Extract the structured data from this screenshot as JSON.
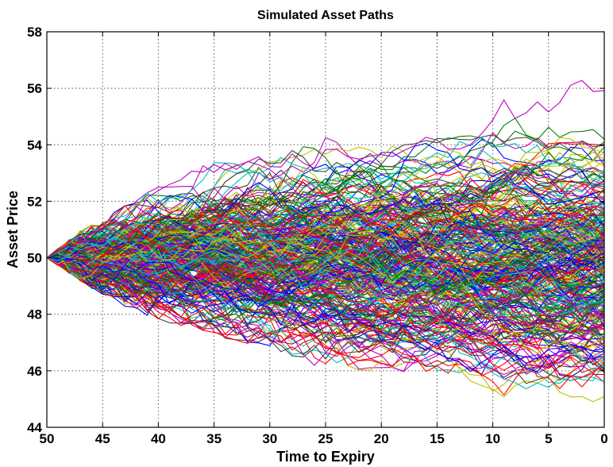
{
  "chart_data": {
    "type": "line",
    "title": "Simulated Asset Paths",
    "xlabel": "Time to Expiry",
    "ylabel": "Asset Price",
    "xlim": [
      50,
      0
    ],
    "ylim": [
      44,
      58
    ],
    "x_reversed": true,
    "xticks": [
      50,
      45,
      40,
      35,
      30,
      25,
      20,
      15,
      10,
      5,
      0
    ],
    "yticks": [
      44,
      46,
      48,
      50,
      52,
      54,
      56,
      58
    ],
    "grid": true,
    "legend": "none",
    "start_value": 50,
    "colors": [
      "#0000ff",
      "#008000",
      "#ff0000",
      "#00bfbf",
      "#bf00bf",
      "#bfbf00",
      "#404040"
    ],
    "envelope": {
      "x": [
        50,
        45,
        40,
        35,
        30,
        25,
        20,
        15,
        10,
        5,
        0
      ],
      "upper": [
        50,
        51.6,
        52.5,
        53.6,
        54.1,
        54.4,
        54.9,
        55.3,
        55.7,
        56.0,
        56.5
      ],
      "lower": [
        50,
        48.6,
        47.8,
        47.2,
        46.8,
        46.0,
        46.0,
        45.8,
        44.6,
        44.8,
        44.9
      ]
    }
  }
}
